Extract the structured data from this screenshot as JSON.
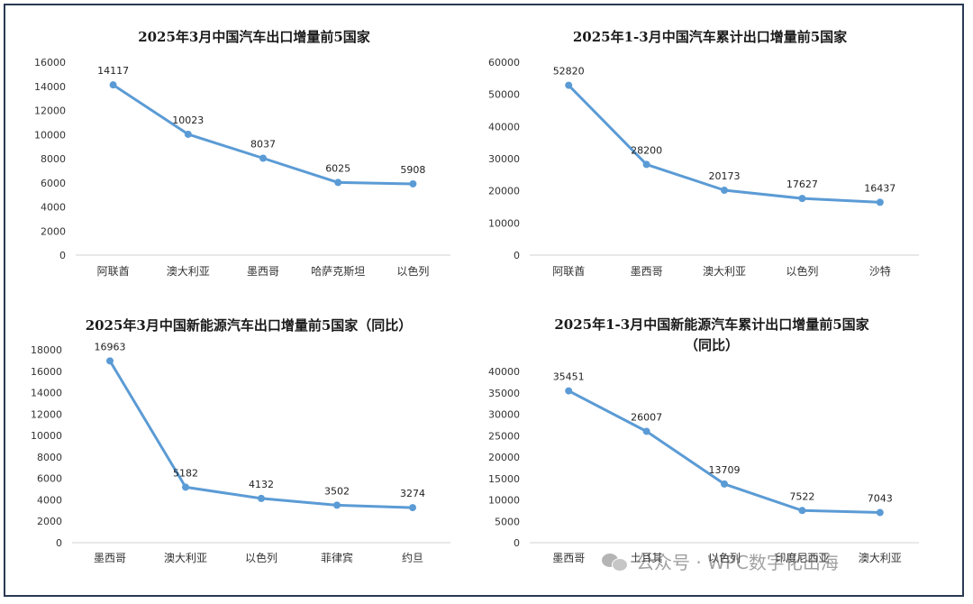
{
  "watermark": "公众号 · WPC数字化出海",
  "chart_data": [
    {
      "type": "line",
      "title": [
        "2025年3月中国汽车出口增量前5国家"
      ],
      "categories": [
        "阿联酋",
        "澳大利亚",
        "墨西哥",
        "哈萨克斯坦",
        "以色列"
      ],
      "values": [
        14117,
        10023,
        8037,
        6025,
        5908
      ],
      "ylim": [
        0,
        16000
      ],
      "yticks": [
        0,
        2000,
        4000,
        6000,
        8000,
        10000,
        12000,
        14000,
        16000
      ],
      "grid": false,
      "color": "#5b9bd5"
    },
    {
      "type": "line",
      "title": [
        "2025年1-3月中国汽车累计出口增量前5国家"
      ],
      "categories": [
        "阿联酋",
        "墨西哥",
        "澳大利亚",
        "以色列",
        "沙特"
      ],
      "values": [
        52820,
        28200,
        20173,
        17627,
        16437
      ],
      "ylim": [
        0,
        60000
      ],
      "yticks": [
        0,
        10000,
        20000,
        30000,
        40000,
        50000,
        60000
      ],
      "grid": false,
      "color": "#5b9bd5"
    },
    {
      "type": "line",
      "title": [
        "2025年3月中国新能源汽车出口增量前5国家（同比）"
      ],
      "categories": [
        "墨西哥",
        "澳大利亚",
        "以色列",
        "菲律宾",
        "约旦"
      ],
      "values": [
        16963,
        5182,
        4132,
        3502,
        3274
      ],
      "ylim": [
        0,
        18000
      ],
      "yticks": [
        0,
        2000,
        4000,
        6000,
        8000,
        10000,
        12000,
        14000,
        16000,
        18000
      ],
      "grid": false,
      "color": "#5b9bd5"
    },
    {
      "type": "line",
      "title": [
        "2025年1-3月中国新能源汽车累计出口增量前5国家",
        "（同比）"
      ],
      "categories": [
        "墨西哥",
        "土耳其",
        "以色列",
        "印度尼西亚",
        "澳大利亚"
      ],
      "values": [
        35451,
        26007,
        13709,
        7522,
        7043
      ],
      "ylim": [
        0,
        40000
      ],
      "yticks": [
        0,
        5000,
        10000,
        15000,
        20000,
        25000,
        30000,
        35000,
        40000
      ],
      "grid": false,
      "color": "#5b9bd5"
    }
  ]
}
